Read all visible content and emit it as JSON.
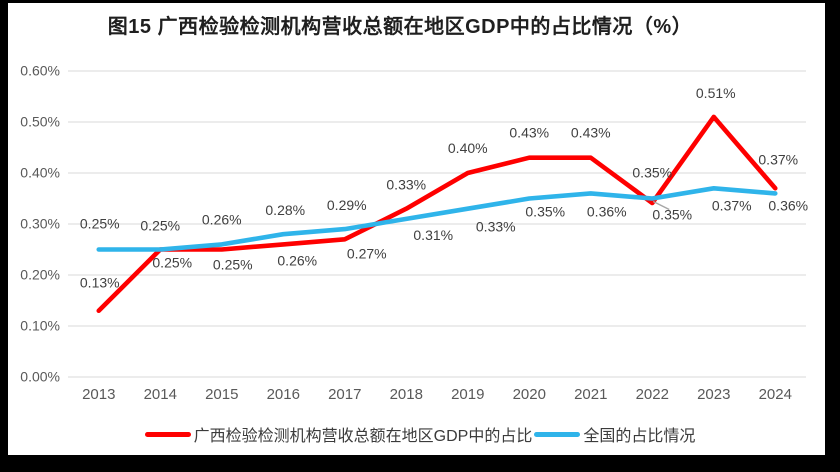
{
  "chart_data": {
    "type": "line",
    "title": "图15 广西检验检测机构营收总额在地区GDP中的占比情况（%）",
    "x": [
      "2013",
      "2014",
      "2015",
      "2016",
      "2017",
      "2018",
      "2019",
      "2020",
      "2021",
      "2022",
      "2023",
      "2024"
    ],
    "series": [
      {
        "name": "广西检验检测机构营收总额在地区GDP中的占比",
        "color": "#fe0000",
        "values": [
          0.13,
          0.25,
          0.25,
          0.26,
          0.27,
          0.33,
          0.4,
          0.43,
          0.43,
          0.35,
          0.51,
          0.37
        ],
        "labels": [
          "0.13%",
          "0.25%",
          "0.25%",
          "0.26%",
          "0.27%",
          "0.33%",
          "0.40%",
          "0.43%",
          "0.43%",
          "0.35%",
          "0.51%",
          "0.37%"
        ]
      },
      {
        "name": "全国的占比情况",
        "color": "#2fb4ea",
        "values": [
          0.25,
          0.25,
          0.26,
          0.28,
          0.29,
          0.31,
          0.33,
          0.35,
          0.36,
          0.35,
          0.37,
          0.36
        ],
        "labels": [
          "0.25%",
          "0.25%",
          "0.26%",
          "0.28%",
          "0.29%",
          "0.31%",
          "0.33%",
          "0.35%",
          "0.36%",
          "0.35%",
          "0.37%",
          "0.36%"
        ]
      }
    ],
    "y_ticks": [
      "0.00%",
      "0.10%",
      "0.20%",
      "0.30%",
      "0.40%",
      "0.50%",
      "0.60%"
    ],
    "ylim": [
      0,
      0.6
    ],
    "grid": true,
    "legend_position": "bottom"
  },
  "colors": {
    "grid": "#d9d9d9",
    "axis_text": "#595959",
    "data_label_text": "#404040",
    "leader_line": "#a6a6a6",
    "frame": "#000000",
    "background": "#ffffff"
  }
}
